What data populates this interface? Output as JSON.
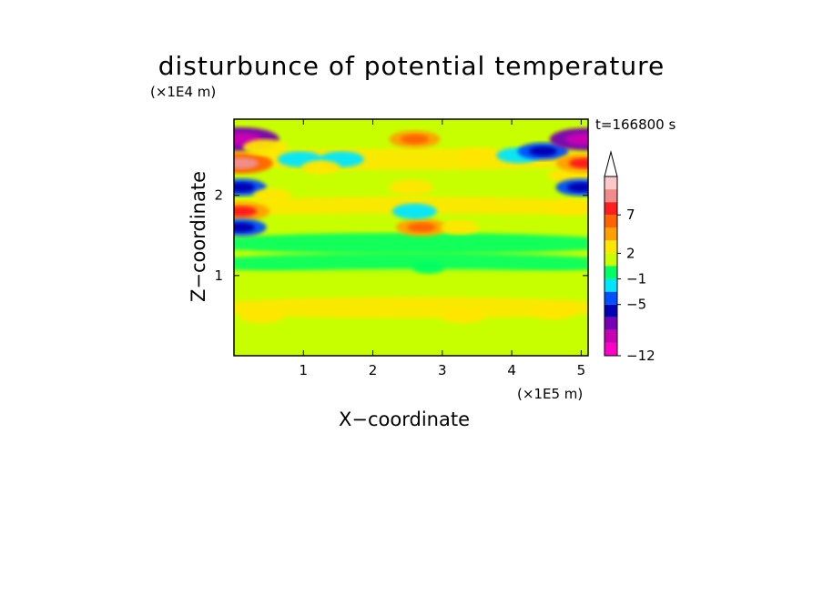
{
  "chart_data": {
    "type": "heatmap",
    "title": "disturbunce of potential temperature",
    "xlabel": "X−coordinate",
    "ylabel": "Z−coordinate",
    "x_scale_note": "(×1E5 m)",
    "y_scale_note": "(×1E4 m)",
    "time_label": "t=166800 s",
    "xlim": [
      0,
      5.1
    ],
    "ylim": [
      0,
      2.95
    ],
    "xticks": [
      "1",
      "2",
      "3",
      "4",
      "5"
    ],
    "yticks": [
      "1",
      "2"
    ],
    "colorbar": {
      "levels": [
        "−12",
        "−5",
        "−1",
        "2",
        "7"
      ],
      "colors": [
        "#ff00c8",
        "#c800b4",
        "#7800b4",
        "#0000b4",
        "#0050ff",
        "#00e6ff",
        "#00ff64",
        "#c8ff00",
        "#ffe600",
        "#ffa000",
        "#ff6400",
        "#ff1e1e",
        "#f08c8c",
        "#ffc8c8"
      ]
    },
    "bands": [
      {
        "z": 2.75,
        "value": 0
      },
      {
        "z": 2.45,
        "value": 2
      },
      {
        "z": 2.1,
        "value": 1
      },
      {
        "z": 1.85,
        "value": 3
      },
      {
        "z": 1.65,
        "value": 0
      },
      {
        "z": 1.4,
        "value": -1
      },
      {
        "z": 1.15,
        "value": -1
      },
      {
        "z": 0.95,
        "value": 0
      },
      {
        "z": 0.6,
        "value": 2
      },
      {
        "z": 0.3,
        "value": 1
      },
      {
        "z": 0.08,
        "value": 0
      }
    ],
    "features": [
      {
        "x": 0.1,
        "z": 2.7,
        "value": -8
      },
      {
        "x": 0.1,
        "z": 2.4,
        "value": 6
      },
      {
        "x": 0.1,
        "z": 2.1,
        "value": -4
      },
      {
        "x": 0.1,
        "z": 1.8,
        "value": 5
      },
      {
        "x": 0.1,
        "z": 1.6,
        "value": -4
      },
      {
        "x": 0.45,
        "z": 2.6,
        "value": 3
      },
      {
        "x": 0.55,
        "z": 2.0,
        "value": 2
      },
      {
        "x": 0.95,
        "z": 2.45,
        "value": -3
      },
      {
        "x": 1.55,
        "z": 2.45,
        "value": -3
      },
      {
        "x": 1.25,
        "z": 2.35,
        "value": 2
      },
      {
        "x": 2.6,
        "z": 2.7,
        "value": 4
      },
      {
        "x": 2.55,
        "z": 2.1,
        "value": 3
      },
      {
        "x": 2.7,
        "z": 1.6,
        "value": 4
      },
      {
        "x": 2.6,
        "z": 1.8,
        "value": -3
      },
      {
        "x": 3.5,
        "z": 2.5,
        "value": 3
      },
      {
        "x": 3.25,
        "z": 1.6,
        "value": 2
      },
      {
        "x": 4.1,
        "z": 2.5,
        "value": -3
      },
      {
        "x": 4.45,
        "z": 2.55,
        "value": -4
      },
      {
        "x": 4.85,
        "z": 2.25,
        "value": 3
      },
      {
        "x": 5.05,
        "z": 2.7,
        "value": -7
      },
      {
        "x": 5.05,
        "z": 2.4,
        "value": 5
      },
      {
        "x": 5.0,
        "z": 2.1,
        "value": -4
      },
      {
        "x": 4.85,
        "z": 1.85,
        "value": 3
      },
      {
        "x": 2.8,
        "z": 1.1,
        "value": -1
      },
      {
        "x": 0.4,
        "z": 0.5,
        "value": 3
      },
      {
        "x": 3.3,
        "z": 0.5,
        "value": 3
      },
      {
        "x": 4.6,
        "z": 0.55,
        "value": 3
      }
    ]
  }
}
